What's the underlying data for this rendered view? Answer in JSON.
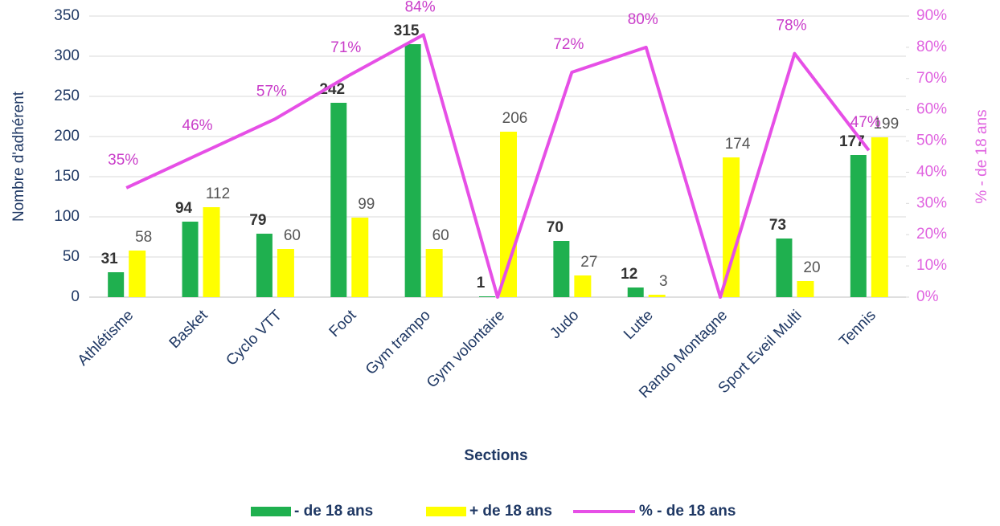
{
  "chart_data": {
    "type": "bar-line",
    "x_label": "Sections",
    "y_label": "Nombre d'adhérent",
    "y2_label": "% - de 18 ans",
    "categories": [
      "Athlétisme",
      "Basket",
      "Cyclo VTT",
      "Foot",
      "Gym trampo",
      "Gym volontaire",
      "Judo",
      "Lutte",
      "Rando Montagne",
      "Sport Eveil Multi",
      "Tennis"
    ],
    "series": [
      {
        "name": "- de 18 ans",
        "type": "bar",
        "color": "#1fb04f",
        "values": [
          31,
          94,
          79,
          242,
          315,
          1,
          70,
          12,
          0,
          73,
          177
        ]
      },
      {
        "name": "+ de 18 ans",
        "type": "bar",
        "color": "#ffff00",
        "values": [
          58,
          112,
          60,
          99,
          60,
          206,
          27,
          3,
          174,
          20,
          199
        ]
      },
      {
        "name": "% - de 18 ans",
        "type": "line",
        "axis": "y2",
        "color": "#e64fe6",
        "values": [
          35,
          46,
          57,
          71,
          84,
          0,
          72,
          80,
          0,
          78,
          47
        ],
        "value_labels": [
          "35%",
          "46%",
          "57%",
          "71%",
          "84%",
          null,
          "72%",
          "80%",
          null,
          "78%",
          "47%"
        ]
      }
    ],
    "ylim": [
      0,
      350
    ],
    "yticks": [
      0,
      50,
      100,
      150,
      200,
      250,
      300,
      350
    ],
    "y2lim": [
      0,
      90
    ],
    "y2ticks": [
      {
        "value": 0,
        "label": "0%"
      },
      {
        "value": 10,
        "label": "10%"
      },
      {
        "value": 20,
        "label": "20%"
      },
      {
        "value": 30,
        "label": "30%"
      },
      {
        "value": 40,
        "label": "40%"
      },
      {
        "value": 50,
        "label": "50%"
      },
      {
        "value": 60,
        "label": "60%"
      },
      {
        "value": 70,
        "label": "70%"
      },
      {
        "value": 80,
        "label": "80%"
      },
      {
        "value": 90,
        "label": "90%"
      }
    ],
    "grid": true,
    "legend": "bottom"
  }
}
